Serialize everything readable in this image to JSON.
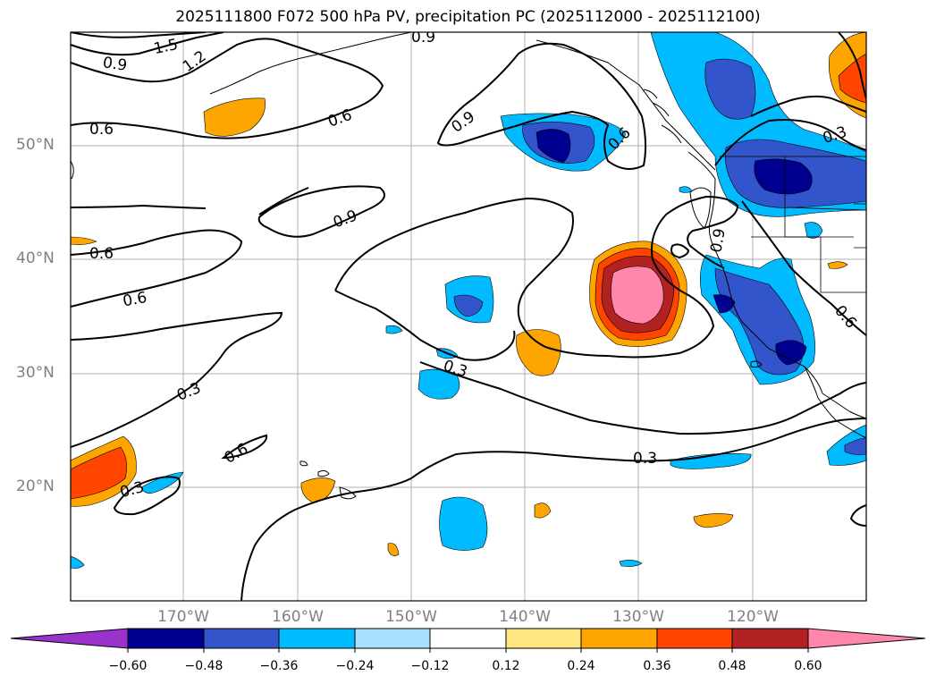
{
  "title": "2025111800 F072 500 hPa PV, precipitation PC (2025112000 - 2025112100)",
  "lat_labels": [
    "50°N",
    "40°N",
    "30°N",
    "20°N"
  ],
  "lon_labels": [
    "170°W",
    "160°W",
    "150°W",
    "140°W",
    "130°W",
    "120°W"
  ],
  "colorbar": {
    "ticks": [
      "−0.60",
      "−0.48",
      "−0.36",
      "−0.24",
      "−0.12",
      "0.12",
      "0.24",
      "0.36",
      "0.48",
      "0.60"
    ],
    "colors": [
      "#9933cc",
      "#000090",
      "#3355cc",
      "#00bbff",
      "#aae0ff",
      "#ffffff",
      "#ffe680",
      "#ffa500",
      "#ff4500",
      "#b22222",
      "#ff88aa"
    ]
  },
  "pv_contour_labels": [
    "1.5",
    "1.2",
    "0.9",
    "0.9",
    "0.6",
    "0.6",
    "0.9",
    "0.9",
    "0.6",
    "0.3",
    "0.6",
    "0.6",
    "0.9",
    "0.6",
    "0.3",
    "0.3",
    "0.6",
    "0.3",
    "0.3",
    "0.3",
    "0.3",
    "0.6"
  ]
}
